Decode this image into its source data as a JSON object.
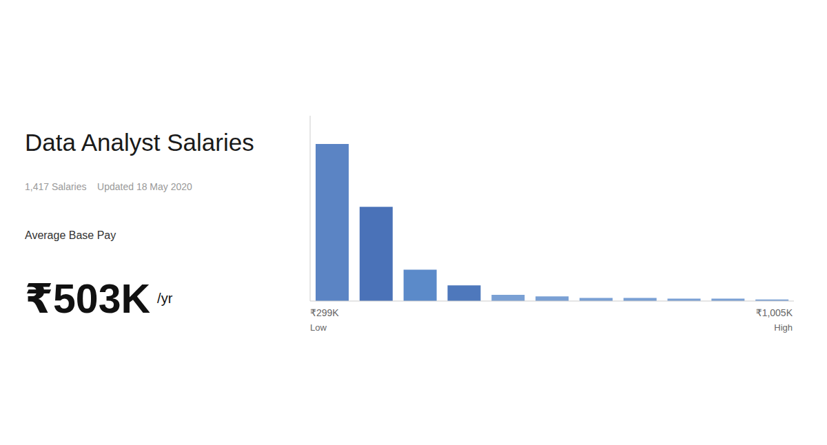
{
  "chart_data": {
    "type": "bar",
    "title": "Data Analyst Salaries",
    "subtitle": "1,417 Salaries    Updated 18 May 2020",
    "annotations": [
      "Average Base Pay",
      "₹503K",
      "/yr",
      "₹299K",
      "Low",
      "₹1,005K",
      "High"
    ],
    "categories": [
      null,
      null,
      null,
      null,
      null,
      null,
      null,
      null,
      null,
      null,
      null
    ],
    "values": [
      1,
      0.6,
      0.2,
      0.1,
      0.04,
      0.03,
      0.02,
      0.02,
      0.015,
      0.015,
      0.01
    ],
    "colors": [
      "#5b84c4",
      "#4a72b8",
      "#5b8ac9",
      "#4e78bc",
      "#7aa0d4",
      "#7aa0d4",
      "#7aa0d4",
      "#7aa0d4",
      "#7aa0d4",
      "#7aa0d4",
      "#7aa0d4"
    ],
    "ylim": [
      0,
      1.18
    ],
    "tick_labels": false,
    "grid": false
  }
}
